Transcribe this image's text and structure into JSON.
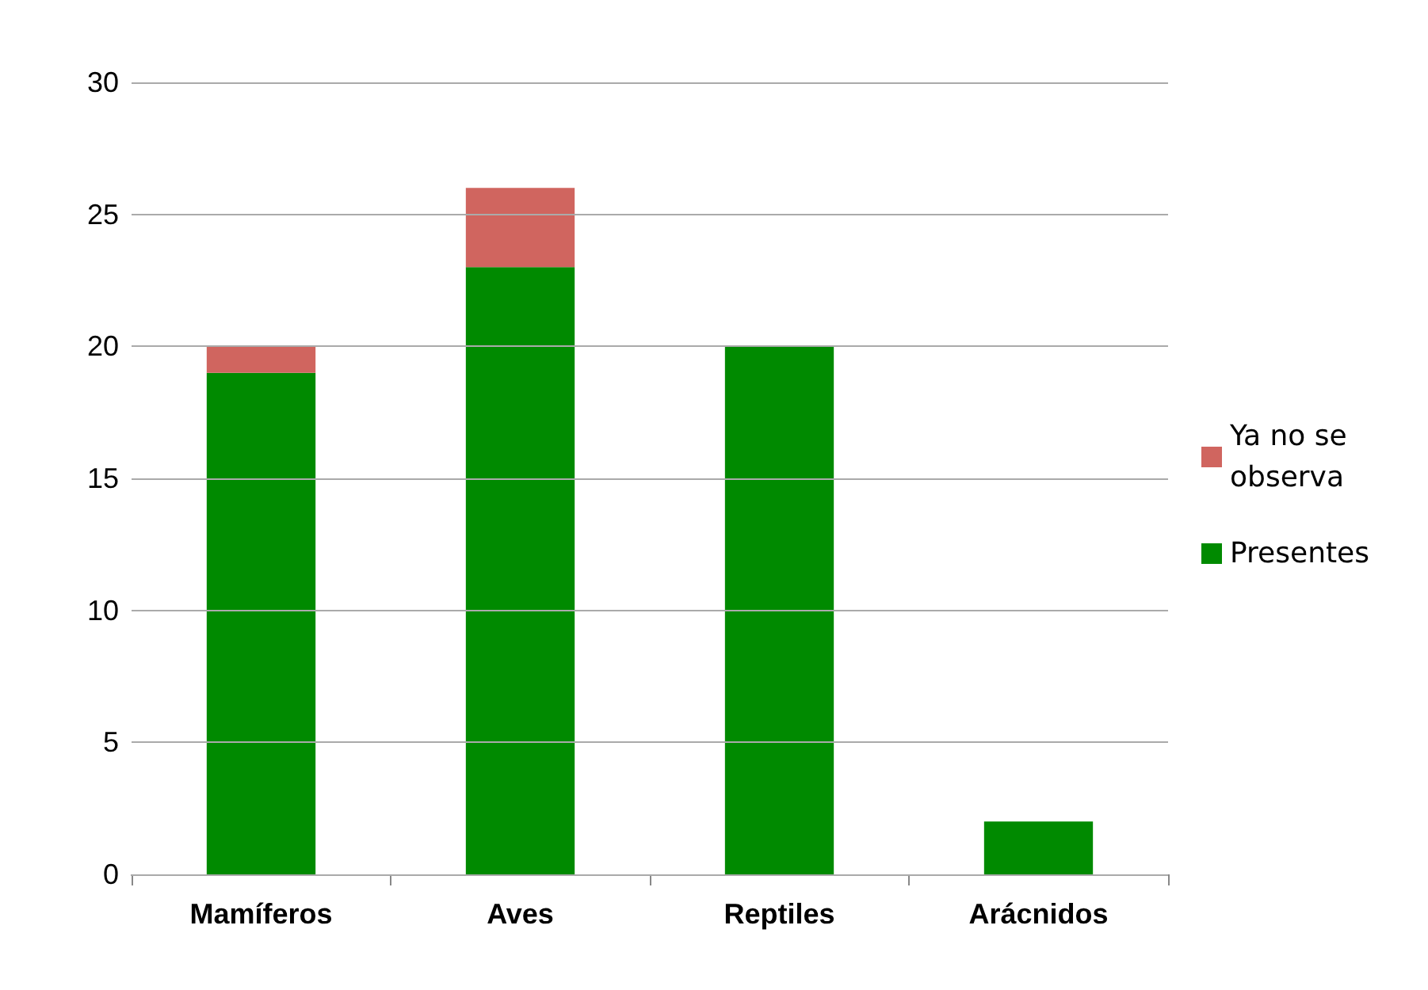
{
  "chart_data": {
    "type": "bar",
    "stacked": true,
    "categories": [
      "Mamíferos",
      "Aves",
      "Reptiles",
      "Arácnidos"
    ],
    "series": [
      {
        "name": "Presentes",
        "color": "#008a00",
        "values": [
          19,
          23,
          20,
          2
        ]
      },
      {
        "name": "Ya no se observa",
        "color": "#d0655f",
        "values": [
          1,
          3,
          0,
          0
        ]
      }
    ],
    "ylim": [
      0,
      30
    ],
    "yticks": [
      0,
      5,
      10,
      15,
      20,
      25,
      30
    ],
    "grid": "y",
    "legend": "right"
  }
}
